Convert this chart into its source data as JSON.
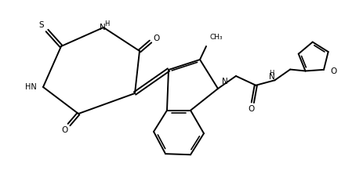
{
  "bg_color": "#ffffff",
  "line_color": "#000000",
  "lw": 1.4,
  "figsize": [
    4.63,
    2.41
  ],
  "dpi": 100,
  "xlim": [
    0,
    4.63
  ],
  "ylim": [
    0,
    2.41
  ]
}
